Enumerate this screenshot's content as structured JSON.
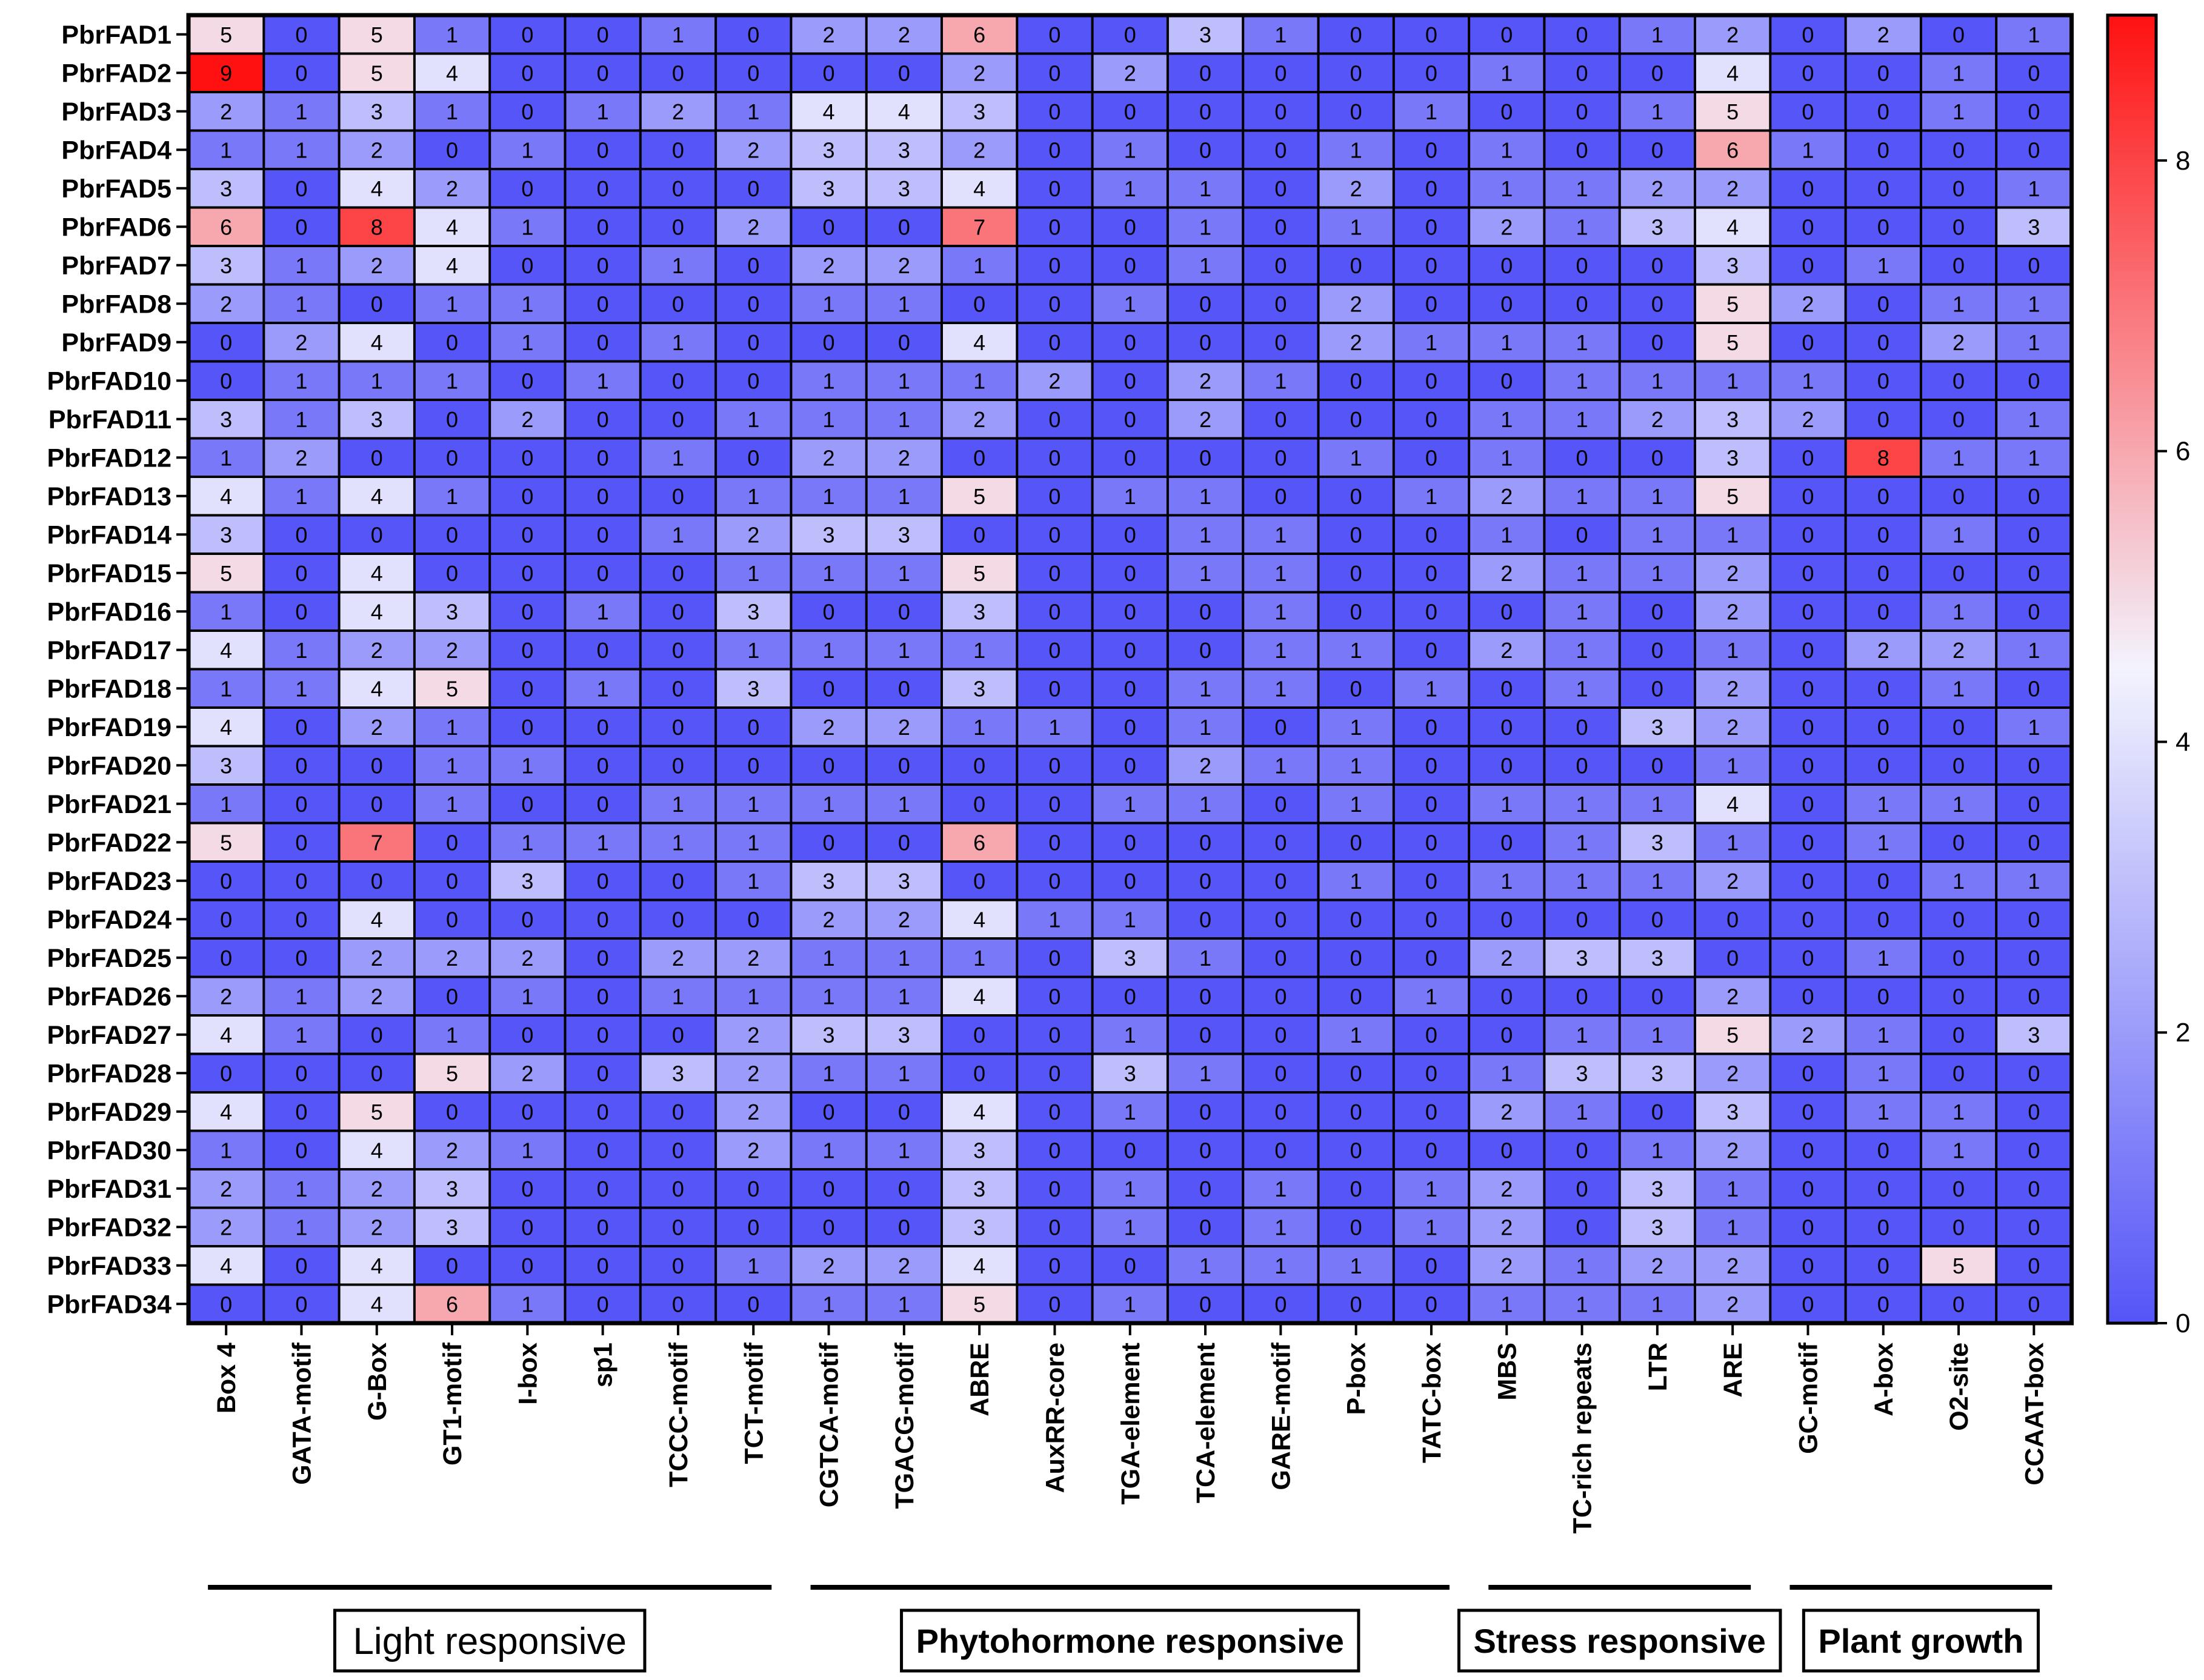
{
  "chart_data": {
    "type": "heatmap",
    "title": "",
    "rows": [
      "PbrFAD1",
      "PbrFAD2",
      "PbrFAD3",
      "PbrFAD4",
      "PbrFAD5",
      "PbrFAD6",
      "PbrFAD7",
      "PbrFAD8",
      "PbrFAD9",
      "PbrFAD10",
      "PbrFAD11",
      "PbrFAD12",
      "PbrFAD13",
      "PbrFAD14",
      "PbrFAD15",
      "PbrFAD16",
      "PbrFAD17",
      "PbrFAD18",
      "PbrFAD19",
      "PbrFAD20",
      "PbrFAD21",
      "PbrFAD22",
      "PbrFAD23",
      "PbrFAD24",
      "PbrFAD25",
      "PbrFAD26",
      "PbrFAD27",
      "PbrFAD28",
      "PbrFAD29",
      "PbrFAD30",
      "PbrFAD31",
      "PbrFAD32",
      "PbrFAD33",
      "PbrFAD34"
    ],
    "columns": [
      "Box 4",
      "GATA-motif",
      "G-Box",
      "GT1-motif",
      "I-box",
      "sp1",
      "TCCC-motif",
      "TCT-motif",
      "CGTCA-motif",
      "TGACG-motif",
      "ABRE",
      "AuxRR-core",
      "TGA-element",
      "TCA-element",
      "GARE-motif",
      "P-box",
      "TATC-box",
      "MBS",
      "TC-rich repeats",
      "LTR",
      "ARE",
      "GC-motif",
      "A-box",
      "O2-site",
      "CCAAT-box"
    ],
    "values": [
      [
        5,
        0,
        5,
        1,
        0,
        0,
        1,
        0,
        2,
        2,
        6,
        0,
        0,
        3,
        1,
        0,
        0,
        0,
        0,
        1,
        2,
        0,
        2,
        0,
        1
      ],
      [
        9,
        0,
        5,
        4,
        0,
        0,
        0,
        0,
        0,
        0,
        2,
        0,
        2,
        0,
        0,
        0,
        0,
        1,
        0,
        0,
        4,
        0,
        0,
        1,
        0
      ],
      [
        2,
        1,
        3,
        1,
        0,
        1,
        2,
        1,
        4,
        4,
        3,
        0,
        0,
        0,
        0,
        0,
        1,
        0,
        0,
        1,
        5,
        0,
        0,
        1,
        0
      ],
      [
        1,
        1,
        2,
        0,
        1,
        0,
        0,
        2,
        3,
        3,
        2,
        0,
        1,
        0,
        0,
        1,
        0,
        1,
        0,
        0,
        6,
        1,
        0,
        0,
        0
      ],
      [
        3,
        0,
        4,
        2,
        0,
        0,
        0,
        0,
        3,
        3,
        4,
        0,
        1,
        1,
        0,
        2,
        0,
        1,
        1,
        2,
        2,
        0,
        0,
        0,
        1
      ],
      [
        6,
        0,
        8,
        4,
        1,
        0,
        0,
        2,
        0,
        0,
        7,
        0,
        0,
        1,
        0,
        1,
        0,
        2,
        1,
        3,
        4,
        0,
        0,
        0,
        3
      ],
      [
        3,
        1,
        2,
        4,
        0,
        0,
        1,
        0,
        2,
        2,
        1,
        0,
        0,
        1,
        0,
        0,
        0,
        0,
        0,
        0,
        3,
        0,
        1,
        0,
        0
      ],
      [
        2,
        1,
        0,
        1,
        1,
        0,
        0,
        0,
        1,
        1,
        0,
        0,
        1,
        0,
        0,
        2,
        0,
        0,
        0,
        0,
        5,
        2,
        0,
        1,
        1
      ],
      [
        0,
        2,
        4,
        0,
        1,
        0,
        1,
        0,
        0,
        0,
        4,
        0,
        0,
        0,
        0,
        2,
        1,
        1,
        1,
        0,
        5,
        0,
        0,
        2,
        1
      ],
      [
        0,
        1,
        1,
        1,
        0,
        1,
        0,
        0,
        1,
        1,
        1,
        2,
        0,
        2,
        1,
        0,
        0,
        0,
        1,
        1,
        1,
        1,
        0,
        0,
        0
      ],
      [
        3,
        1,
        3,
        0,
        2,
        0,
        0,
        1,
        1,
        1,
        2,
        0,
        0,
        2,
        0,
        0,
        0,
        1,
        1,
        2,
        3,
        2,
        0,
        0,
        1
      ],
      [
        1,
        2,
        0,
        0,
        0,
        0,
        1,
        0,
        2,
        2,
        0,
        0,
        0,
        0,
        0,
        1,
        0,
        1,
        0,
        0,
        3,
        0,
        8,
        1,
        1
      ],
      [
        4,
        1,
        4,
        1,
        0,
        0,
        0,
        1,
        1,
        1,
        5,
        0,
        1,
        1,
        0,
        0,
        1,
        2,
        1,
        1,
        5,
        0,
        0,
        0,
        0
      ],
      [
        3,
        0,
        0,
        0,
        0,
        0,
        1,
        2,
        3,
        3,
        0,
        0,
        0,
        1,
        1,
        0,
        0,
        1,
        0,
        1,
        1,
        0,
        0,
        1,
        0
      ],
      [
        5,
        0,
        4,
        0,
        0,
        0,
        0,
        1,
        1,
        1,
        5,
        0,
        0,
        1,
        1,
        0,
        0,
        2,
        1,
        1,
        2,
        0,
        0,
        0,
        0
      ],
      [
        1,
        0,
        4,
        3,
        0,
        1,
        0,
        3,
        0,
        0,
        3,
        0,
        0,
        0,
        1,
        0,
        0,
        0,
        1,
        0,
        2,
        0,
        0,
        1,
        0
      ],
      [
        4,
        1,
        2,
        2,
        0,
        0,
        0,
        1,
        1,
        1,
        1,
        0,
        0,
        0,
        1,
        1,
        0,
        2,
        1,
        0,
        1,
        0,
        2,
        2,
        1
      ],
      [
        1,
        1,
        4,
        5,
        0,
        1,
        0,
        3,
        0,
        0,
        3,
        0,
        0,
        1,
        1,
        0,
        1,
        0,
        1,
        0,
        2,
        0,
        0,
        1,
        0
      ],
      [
        4,
        0,
        2,
        1,
        0,
        0,
        0,
        0,
        2,
        2,
        1,
        1,
        0,
        1,
        0,
        1,
        0,
        0,
        0,
        3,
        2,
        0,
        0,
        0,
        1
      ],
      [
        3,
        0,
        0,
        1,
        1,
        0,
        0,
        0,
        0,
        0,
        0,
        0,
        0,
        2,
        1,
        1,
        0,
        0,
        0,
        0,
        1,
        0,
        0,
        0,
        0
      ],
      [
        1,
        0,
        0,
        1,
        0,
        0,
        1,
        1,
        1,
        1,
        0,
        0,
        1,
        1,
        0,
        1,
        0,
        1,
        1,
        1,
        4,
        0,
        1,
        1,
        0
      ],
      [
        5,
        0,
        7,
        0,
        1,
        1,
        1,
        1,
        0,
        0,
        6,
        0,
        0,
        0,
        0,
        0,
        0,
        0,
        1,
        3,
        1,
        0,
        1,
        0,
        0
      ],
      [
        0,
        0,
        0,
        0,
        3,
        0,
        0,
        1,
        3,
        3,
        0,
        0,
        0,
        0,
        0,
        1,
        0,
        1,
        1,
        1,
        2,
        0,
        0,
        1,
        1
      ],
      [
        0,
        0,
        4,
        0,
        0,
        0,
        0,
        0,
        2,
        2,
        4,
        1,
        1,
        0,
        0,
        0,
        0,
        0,
        0,
        0,
        0,
        0,
        0,
        0,
        0
      ],
      [
        0,
        0,
        2,
        2,
        2,
        0,
        2,
        2,
        1,
        1,
        1,
        0,
        3,
        1,
        0,
        0,
        0,
        2,
        3,
        3,
        0,
        0,
        1,
        0,
        0
      ],
      [
        2,
        1,
        2,
        0,
        1,
        0,
        1,
        1,
        1,
        1,
        4,
        0,
        0,
        0,
        0,
        0,
        1,
        0,
        0,
        0,
        2,
        0,
        0,
        0,
        0
      ],
      [
        4,
        1,
        0,
        1,
        0,
        0,
        0,
        2,
        3,
        3,
        0,
        0,
        1,
        0,
        0,
        1,
        0,
        0,
        1,
        1,
        5,
        2,
        1,
        0,
        3
      ],
      [
        0,
        0,
        0,
        5,
        2,
        0,
        3,
        2,
        1,
        1,
        0,
        0,
        3,
        1,
        0,
        0,
        0,
        1,
        3,
        3,
        2,
        0,
        1,
        0,
        0
      ],
      [
        4,
        0,
        5,
        0,
        0,
        0,
        0,
        2,
        0,
        0,
        4,
        0,
        1,
        0,
        0,
        0,
        0,
        2,
        1,
        0,
        3,
        0,
        1,
        1,
        0
      ],
      [
        1,
        0,
        4,
        2,
        1,
        0,
        0,
        2,
        1,
        1,
        3,
        0,
        0,
        0,
        0,
        0,
        0,
        0,
        0,
        1,
        2,
        0,
        0,
        1,
        0
      ],
      [
        2,
        1,
        2,
        3,
        0,
        0,
        0,
        0,
        0,
        0,
        3,
        0,
        1,
        0,
        1,
        0,
        1,
        2,
        0,
        3,
        1,
        0,
        0,
        0,
        0
      ],
      [
        2,
        1,
        2,
        3,
        0,
        0,
        0,
        0,
        0,
        0,
        3,
        0,
        1,
        0,
        1,
        0,
        1,
        2,
        0,
        3,
        1,
        0,
        0,
        0,
        0
      ],
      [
        4,
        0,
        4,
        0,
        0,
        0,
        0,
        1,
        2,
        2,
        4,
        0,
        0,
        1,
        1,
        1,
        0,
        2,
        1,
        2,
        2,
        0,
        0,
        5,
        0
      ],
      [
        0,
        0,
        4,
        6,
        1,
        0,
        0,
        0,
        1,
        1,
        5,
        0,
        1,
        0,
        0,
        0,
        0,
        1,
        1,
        1,
        2,
        0,
        0,
        0,
        0
      ]
    ],
    "color_scale": {
      "min": 0,
      "mid": 4.5,
      "max": 9,
      "low": "#5555f8",
      "mid_color": "#f3f3fe",
      "high": "#ff1111"
    },
    "colorbar_ticks": [
      "0",
      "2",
      "4",
      "6",
      "8"
    ],
    "groups": [
      {
        "label": "Light responsive",
        "from": 0,
        "to": 7,
        "bold": false
      },
      {
        "label": "Phytohormone responsive",
        "from": 8,
        "to": 16,
        "bold": true
      },
      {
        "label": "Stress responsive",
        "from": 17,
        "to": 20,
        "bold": true
      },
      {
        "label": "Plant growth",
        "from": 21,
        "to": 24,
        "bold": true
      }
    ]
  }
}
